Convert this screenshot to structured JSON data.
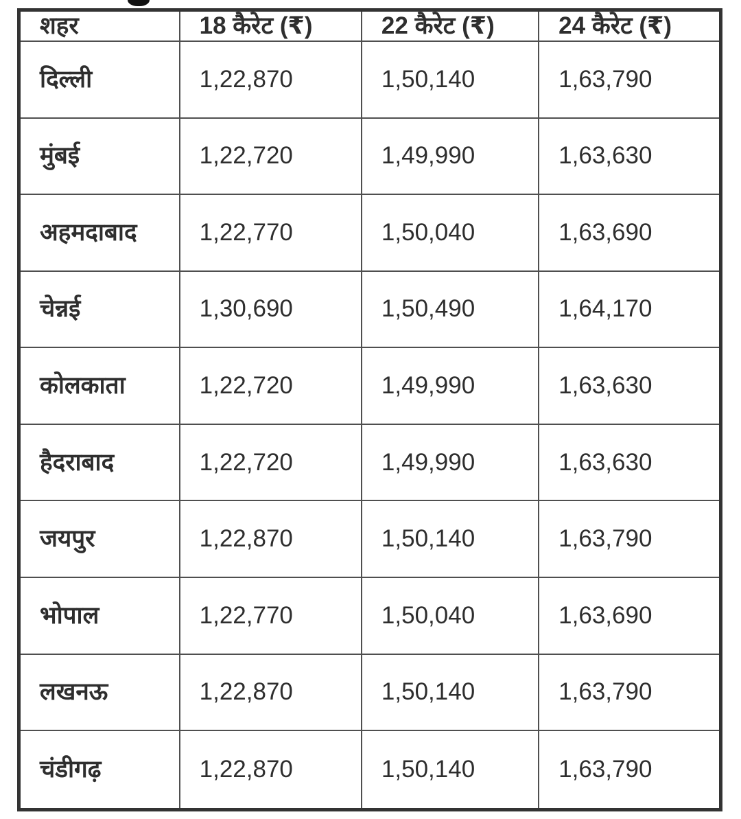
{
  "colors": {
    "background": "#ffffff",
    "outer_border": "#333333",
    "inner_border": "#4f4f4f",
    "text": "#2e2e2e"
  },
  "chart_data": {
    "type": "table",
    "title": "",
    "columns": [
      "शहर",
      "18 कैरेट (₹)",
      "22 कैरेट (₹)",
      "24 कैरेट (₹)"
    ],
    "rows": [
      {
        "city": "दिल्ली",
        "k18": "1,22,870",
        "k22": "1,50,140",
        "k24": "1,63,790"
      },
      {
        "city": "मुंबई",
        "k18": "1,22,720",
        "k22": "1,49,990",
        "k24": "1,63,630"
      },
      {
        "city": "अहमदाबाद",
        "k18": "1,22,770",
        "k22": "1,50,040",
        "k24": "1,63,690"
      },
      {
        "city": "चेन्नई",
        "k18": "1,30,690",
        "k22": "1,50,490",
        "k24": "1,64,170"
      },
      {
        "city": "कोलकाता",
        "k18": "1,22,720",
        "k22": "1,49,990",
        "k24": "1,63,630"
      },
      {
        "city": "हैदराबाद",
        "k18": "1,22,720",
        "k22": "1,49,990",
        "k24": "1,63,630"
      },
      {
        "city": "जयपुर",
        "k18": "1,22,870",
        "k22": "1,50,140",
        "k24": "1,63,790"
      },
      {
        "city": "भोपाल",
        "k18": "1,22,770",
        "k22": "1,50,040",
        "k24": "1,63,690"
      },
      {
        "city": "लखनऊ",
        "k18": "1,22,870",
        "k22": "1,50,140",
        "k24": "1,63,790"
      },
      {
        "city": "चंडीगढ़",
        "k18": "1,22,870",
        "k22": "1,50,140",
        "k24": "1,63,790"
      }
    ]
  }
}
